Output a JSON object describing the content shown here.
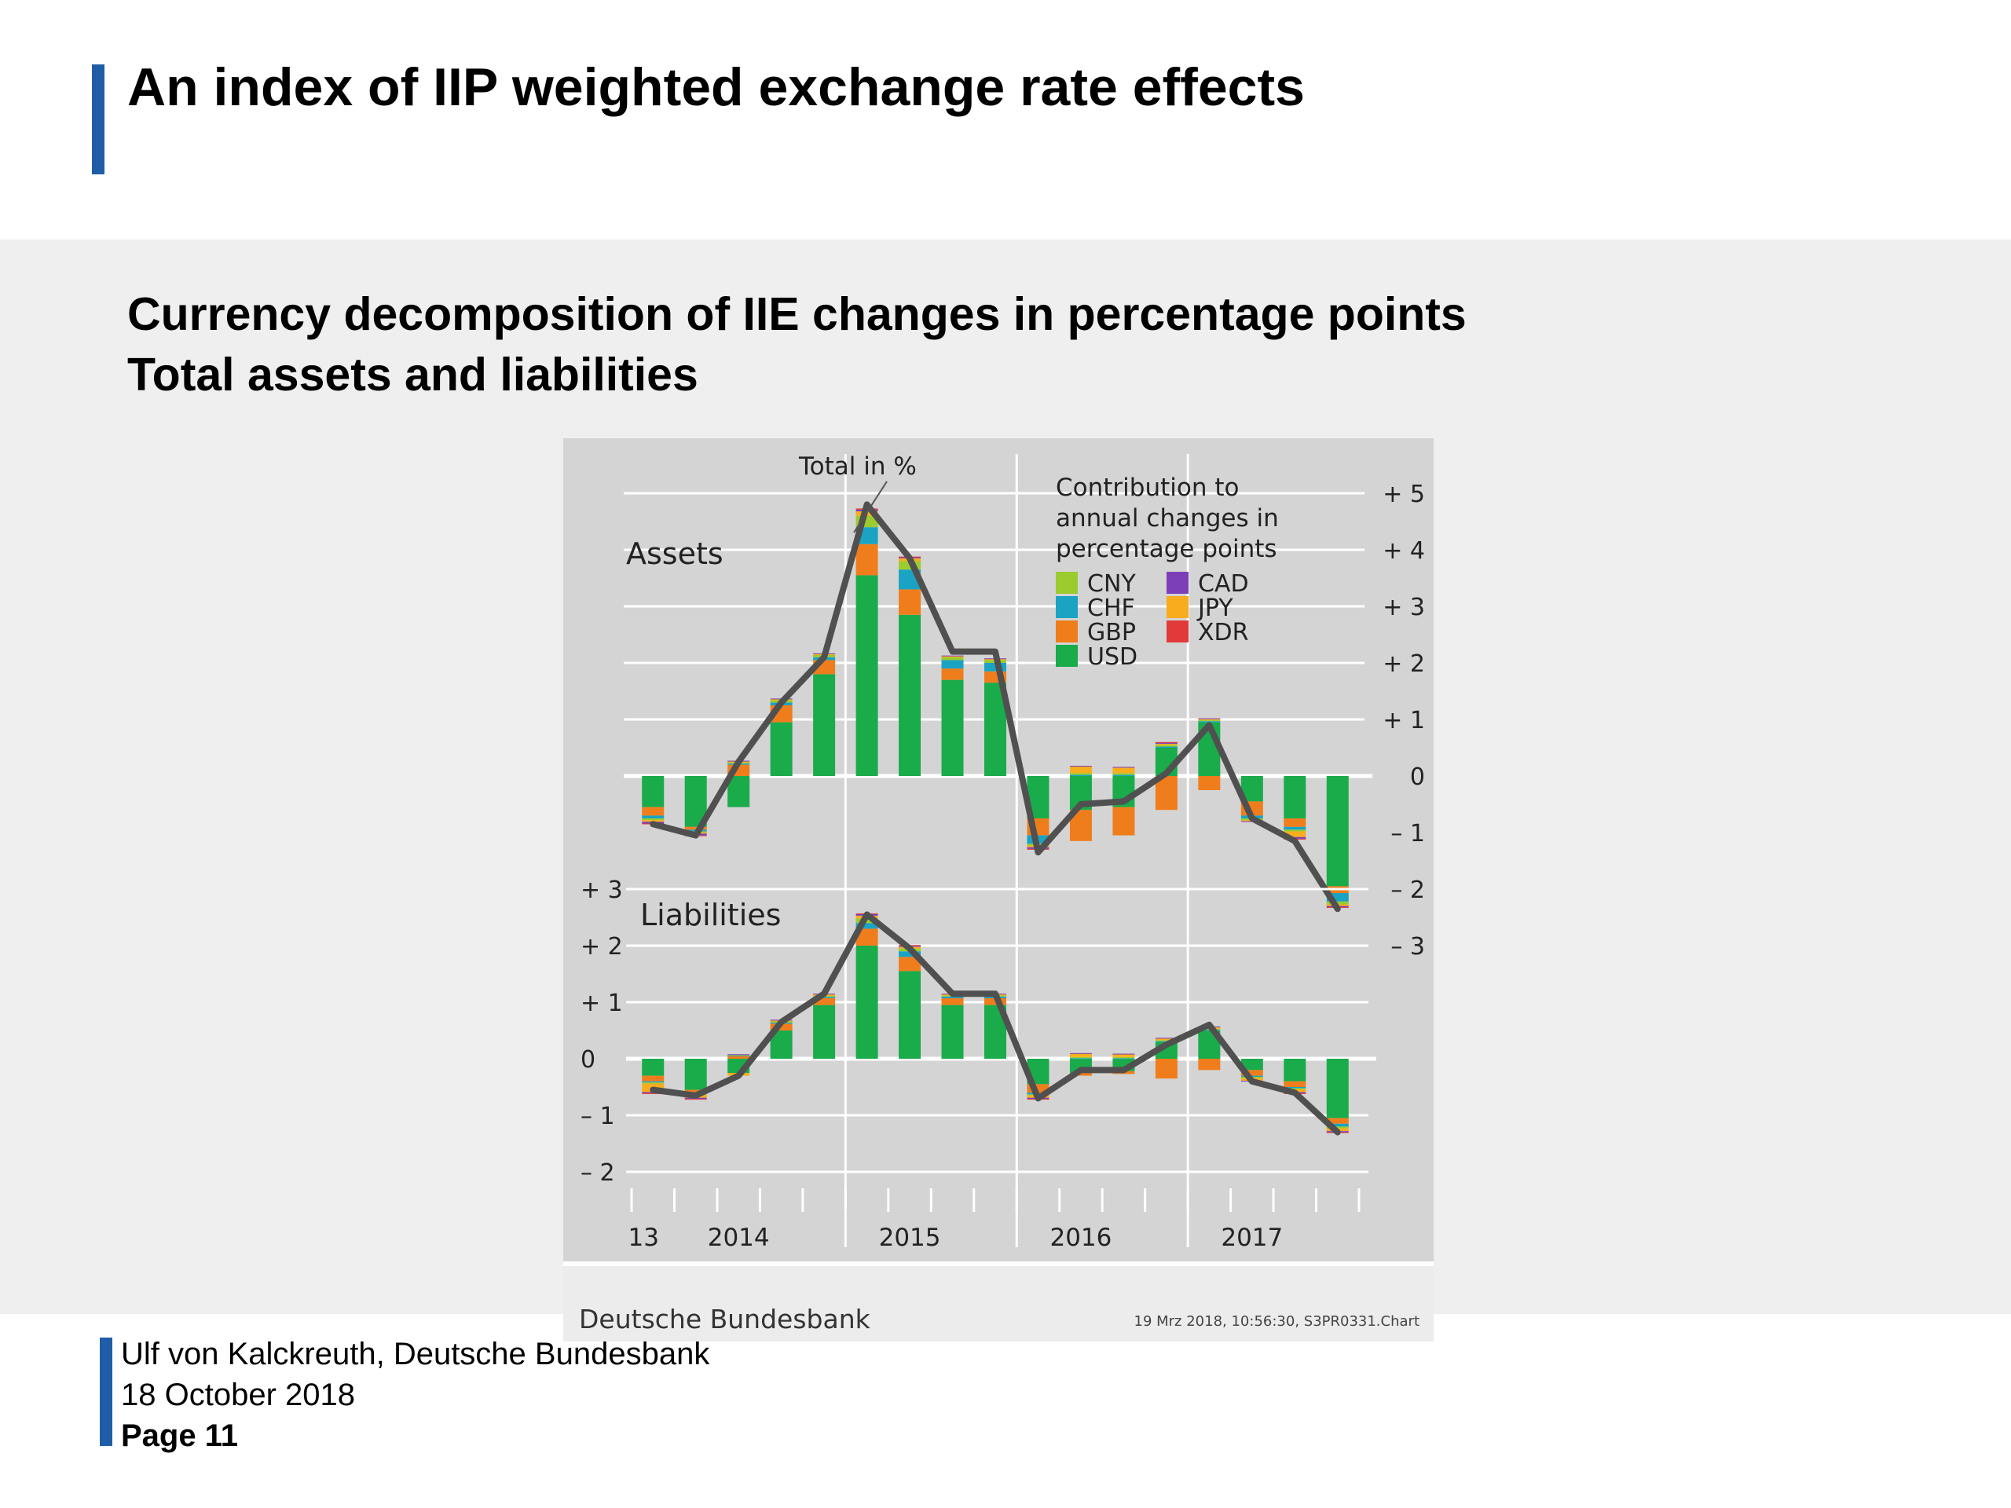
{
  "slide": {
    "title": "An index of IIP weighted exchange rate effects",
    "subtitle_line1": "Currency decomposition of IIE changes in percentage points",
    "subtitle_line2": "Total assets and liabilities"
  },
  "footer": {
    "author": "Ulf von Kalckreuth, Deutsche Bundesbank",
    "date": "18 October 2018",
    "page": "Page 11"
  },
  "chart_data": {
    "type": "bar",
    "stacked": true,
    "total_line_label": "Total in %",
    "legend_title": "Contribution to annual changes in percentage points",
    "legend_title_lines": [
      "Contribution to",
      "annual changes in",
      "percentage points"
    ],
    "legend_left": [
      "CNY",
      "CHF",
      "GBP",
      "USD"
    ],
    "legend_right": [
      "CAD",
      "JPY",
      "XDR"
    ],
    "series_colors": {
      "USD": "#1aab4b",
      "GBP": "#f07d1c",
      "CHF": "#1aa3c2",
      "CNY": "#9bcb2e",
      "JPY": "#f7ad1d",
      "CAD": "#7c3fb7",
      "XDR": "#e23a3a"
    },
    "line_color": "#505050",
    "x_year_labels": [
      {
        "label": "13",
        "index": 0.5
      },
      {
        "label": "2014",
        "index": 2.5
      },
      {
        "label": "2015",
        "index": 6.5
      },
      {
        "label": "2016",
        "index": 10.5
      },
      {
        "label": "2017",
        "index": 14.5
      }
    ],
    "year_divider_after_index": [
      4.5,
      8.5,
      12.5
    ],
    "footer_source": "Deutsche Bundesbank",
    "footer_stamp": "19 Mrz 2018, 10:56:30, S3PR0331.Chart",
    "panels": [
      {
        "name": "Assets",
        "ylim": [
          -3,
          5
        ],
        "y_ticks": [
          5,
          4,
          3,
          2,
          1,
          0,
          -1,
          -2,
          -3
        ],
        "y_tick_labels": [
          "+ 5",
          "+ 4",
          "+ 3",
          "+ 2",
          "+ 1",
          "0",
          "– 1",
          "– 2",
          "– 3"
        ],
        "total": [
          -0.85,
          -1.05,
          0.25,
          1.3,
          2.1,
          4.8,
          3.85,
          2.2,
          2.2,
          -1.35,
          -0.5,
          -0.45,
          0.05,
          0.9,
          -0.75,
          -1.15,
          -2.35
        ],
        "series": [
          {
            "name": "USD",
            "values": [
              -0.55,
              -0.9,
              -0.55,
              0.95,
              1.8,
              3.55,
              2.85,
              1.7,
              1.65,
              -0.75,
              -0.6,
              -0.55,
              0.5,
              0.95,
              -0.45,
              -0.75,
              -1.95
            ]
          },
          {
            "name": "GBP",
            "values": [
              -0.15,
              -0.05,
              0.2,
              0.3,
              0.25,
              0.55,
              0.45,
              0.2,
              0.2,
              -0.3,
              -0.55,
              -0.5,
              -0.6,
              -0.25,
              -0.25,
              -0.15,
              -0.12
            ]
          },
          {
            "name": "CHF",
            "values": [
              -0.05,
              -0.03,
              0.02,
              0.05,
              0.05,
              0.3,
              0.35,
              0.15,
              0.15,
              -0.15,
              0.02,
              0.02,
              0.02,
              0.02,
              -0.05,
              -0.05,
              -0.15
            ]
          },
          {
            "name": "CNY",
            "values": [
              -0.03,
              -0.02,
              0.02,
              0.04,
              0.04,
              0.2,
              0.15,
              0.05,
              0.05,
              -0.03,
              0.03,
              0.03,
              0.03,
              0.02,
              -0.03,
              -0.03,
              -0.05
            ]
          },
          {
            "name": "JPY",
            "values": [
              -0.03,
              -0.02,
              0.02,
              0.02,
              0.02,
              0.08,
              0.05,
              0.02,
              0.02,
              -0.03,
              0.12,
              0.1,
              0.02,
              0.02,
              -0.02,
              -0.1,
              -0.03
            ]
          },
          {
            "name": "CAD",
            "values": [
              -0.03,
              -0.03,
              0.01,
              0.01,
              0.01,
              0.03,
              0.02,
              0.01,
              0.01,
              -0.03,
              0.01,
              0.01,
              0.02,
              0.01,
              -0.01,
              -0.03,
              -0.02
            ]
          },
          {
            "name": "XDR",
            "values": [
              -0.01,
              -0.01,
              0.0,
              0.0,
              0.0,
              0.02,
              0.01,
              0.0,
              0.0,
              -0.01,
              0.0,
              0.0,
              0.01,
              0.0,
              0.0,
              -0.01,
              -0.01
            ]
          }
        ]
      },
      {
        "name": "Liabilities",
        "ylim": [
          -2,
          3
        ],
        "y_ticks": [
          3,
          2,
          1,
          0,
          -1,
          -2
        ],
        "y_tick_labels": [
          "+ 3",
          "+ 2",
          "+ 1",
          "0",
          "– 1",
          "– 2"
        ],
        "total": [
          -0.55,
          -0.65,
          -0.3,
          0.65,
          1.15,
          2.55,
          1.95,
          1.15,
          1.15,
          -0.7,
          -0.2,
          -0.2,
          0.25,
          0.6,
          -0.4,
          -0.6,
          -1.3
        ],
        "series": [
          {
            "name": "USD",
            "values": [
              -0.3,
              -0.55,
              -0.25,
              0.5,
              0.95,
              2.0,
              1.55,
              0.95,
              0.95,
              -0.45,
              -0.25,
              -0.22,
              0.3,
              0.5,
              -0.2,
              -0.4,
              -1.05
            ]
          },
          {
            "name": "GBP",
            "values": [
              -0.1,
              -0.05,
              0.05,
              0.12,
              0.12,
              0.3,
              0.25,
              0.12,
              0.12,
              -0.15,
              -0.05,
              -0.05,
              -0.35,
              -0.2,
              -0.1,
              -0.1,
              -0.1
            ]
          },
          {
            "name": "CHF",
            "values": [
              -0.02,
              -0.02,
              0.01,
              0.02,
              0.02,
              0.1,
              0.1,
              0.03,
              0.03,
              -0.03,
              0.01,
              0.01,
              0.01,
              0.01,
              -0.02,
              -0.02,
              -0.05
            ]
          },
          {
            "name": "CNY",
            "values": [
              -0.02,
              -0.02,
              0.01,
              0.02,
              0.02,
              0.08,
              0.05,
              0.02,
              0.02,
              -0.02,
              0.02,
              0.02,
              0.02,
              0.02,
              -0.02,
              -0.02,
              -0.03
            ]
          },
          {
            "name": "JPY",
            "values": [
              -0.15,
              -0.05,
              -0.05,
              0.02,
              0.03,
              0.05,
              0.03,
              0.02,
              0.02,
              -0.04,
              0.06,
              0.05,
              0.03,
              0.03,
              -0.05,
              -0.05,
              -0.05
            ]
          },
          {
            "name": "CAD",
            "values": [
              -0.02,
              -0.02,
              0.01,
              0.01,
              0.01,
              0.03,
              0.02,
              0.01,
              0.01,
              -0.02,
              0.01,
              0.01,
              0.01,
              0.01,
              -0.01,
              -0.02,
              -0.02
            ]
          },
          {
            "name": "XDR",
            "values": [
              -0.01,
              -0.01,
              0.0,
              0.0,
              0.0,
              0.01,
              0.01,
              0.0,
              0.0,
              -0.01,
              0.0,
              0.0,
              0.0,
              0.0,
              0.0,
              -0.01,
              -0.01
            ]
          }
        ]
      }
    ]
  }
}
